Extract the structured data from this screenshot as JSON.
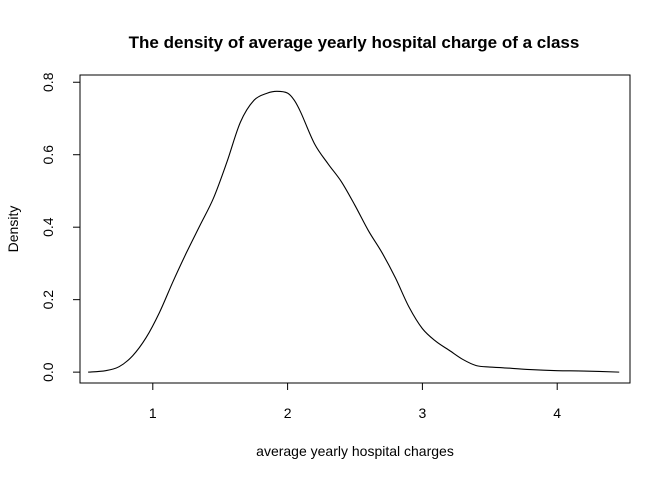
{
  "chart_data": {
    "type": "line",
    "title": "The density of average yearly hospital charge of a class",
    "xlabel": "average yearly hospital charges",
    "ylabel": "Density",
    "xlim": [
      0.46,
      4.54
    ],
    "ylim": [
      -0.03,
      0.82
    ],
    "xticks": [
      1,
      2,
      3,
      4
    ],
    "yticks": [
      0.0,
      0.2,
      0.4,
      0.6,
      0.8
    ],
    "xtick_labels": [
      "1",
      "2",
      "3",
      "4"
    ],
    "ytick_labels": [
      "0.0",
      "0.2",
      "0.4",
      "0.6",
      "0.8"
    ],
    "grid": false,
    "legend": "none",
    "series": [
      {
        "x": [
          0.52,
          0.65,
          0.75,
          0.85,
          0.95,
          1.05,
          1.15,
          1.25,
          1.35,
          1.45,
          1.55,
          1.65,
          1.75,
          1.85,
          1.92,
          2.0,
          2.05,
          2.1,
          2.2,
          2.3,
          2.4,
          2.5,
          2.6,
          2.7,
          2.8,
          2.9,
          3.0,
          3.1,
          3.2,
          3.3,
          3.4,
          3.5,
          3.6,
          3.8,
          4.0,
          4.2,
          4.46
        ],
        "values": [
          0.0,
          0.004,
          0.015,
          0.045,
          0.095,
          0.165,
          0.25,
          0.33,
          0.405,
          0.48,
          0.58,
          0.69,
          0.75,
          0.77,
          0.775,
          0.77,
          0.75,
          0.715,
          0.63,
          0.575,
          0.525,
          0.46,
          0.39,
          0.33,
          0.26,
          0.18,
          0.12,
          0.085,
          0.06,
          0.035,
          0.018,
          0.014,
          0.012,
          0.007,
          0.004,
          0.003,
          0.0
        ]
      }
    ]
  }
}
